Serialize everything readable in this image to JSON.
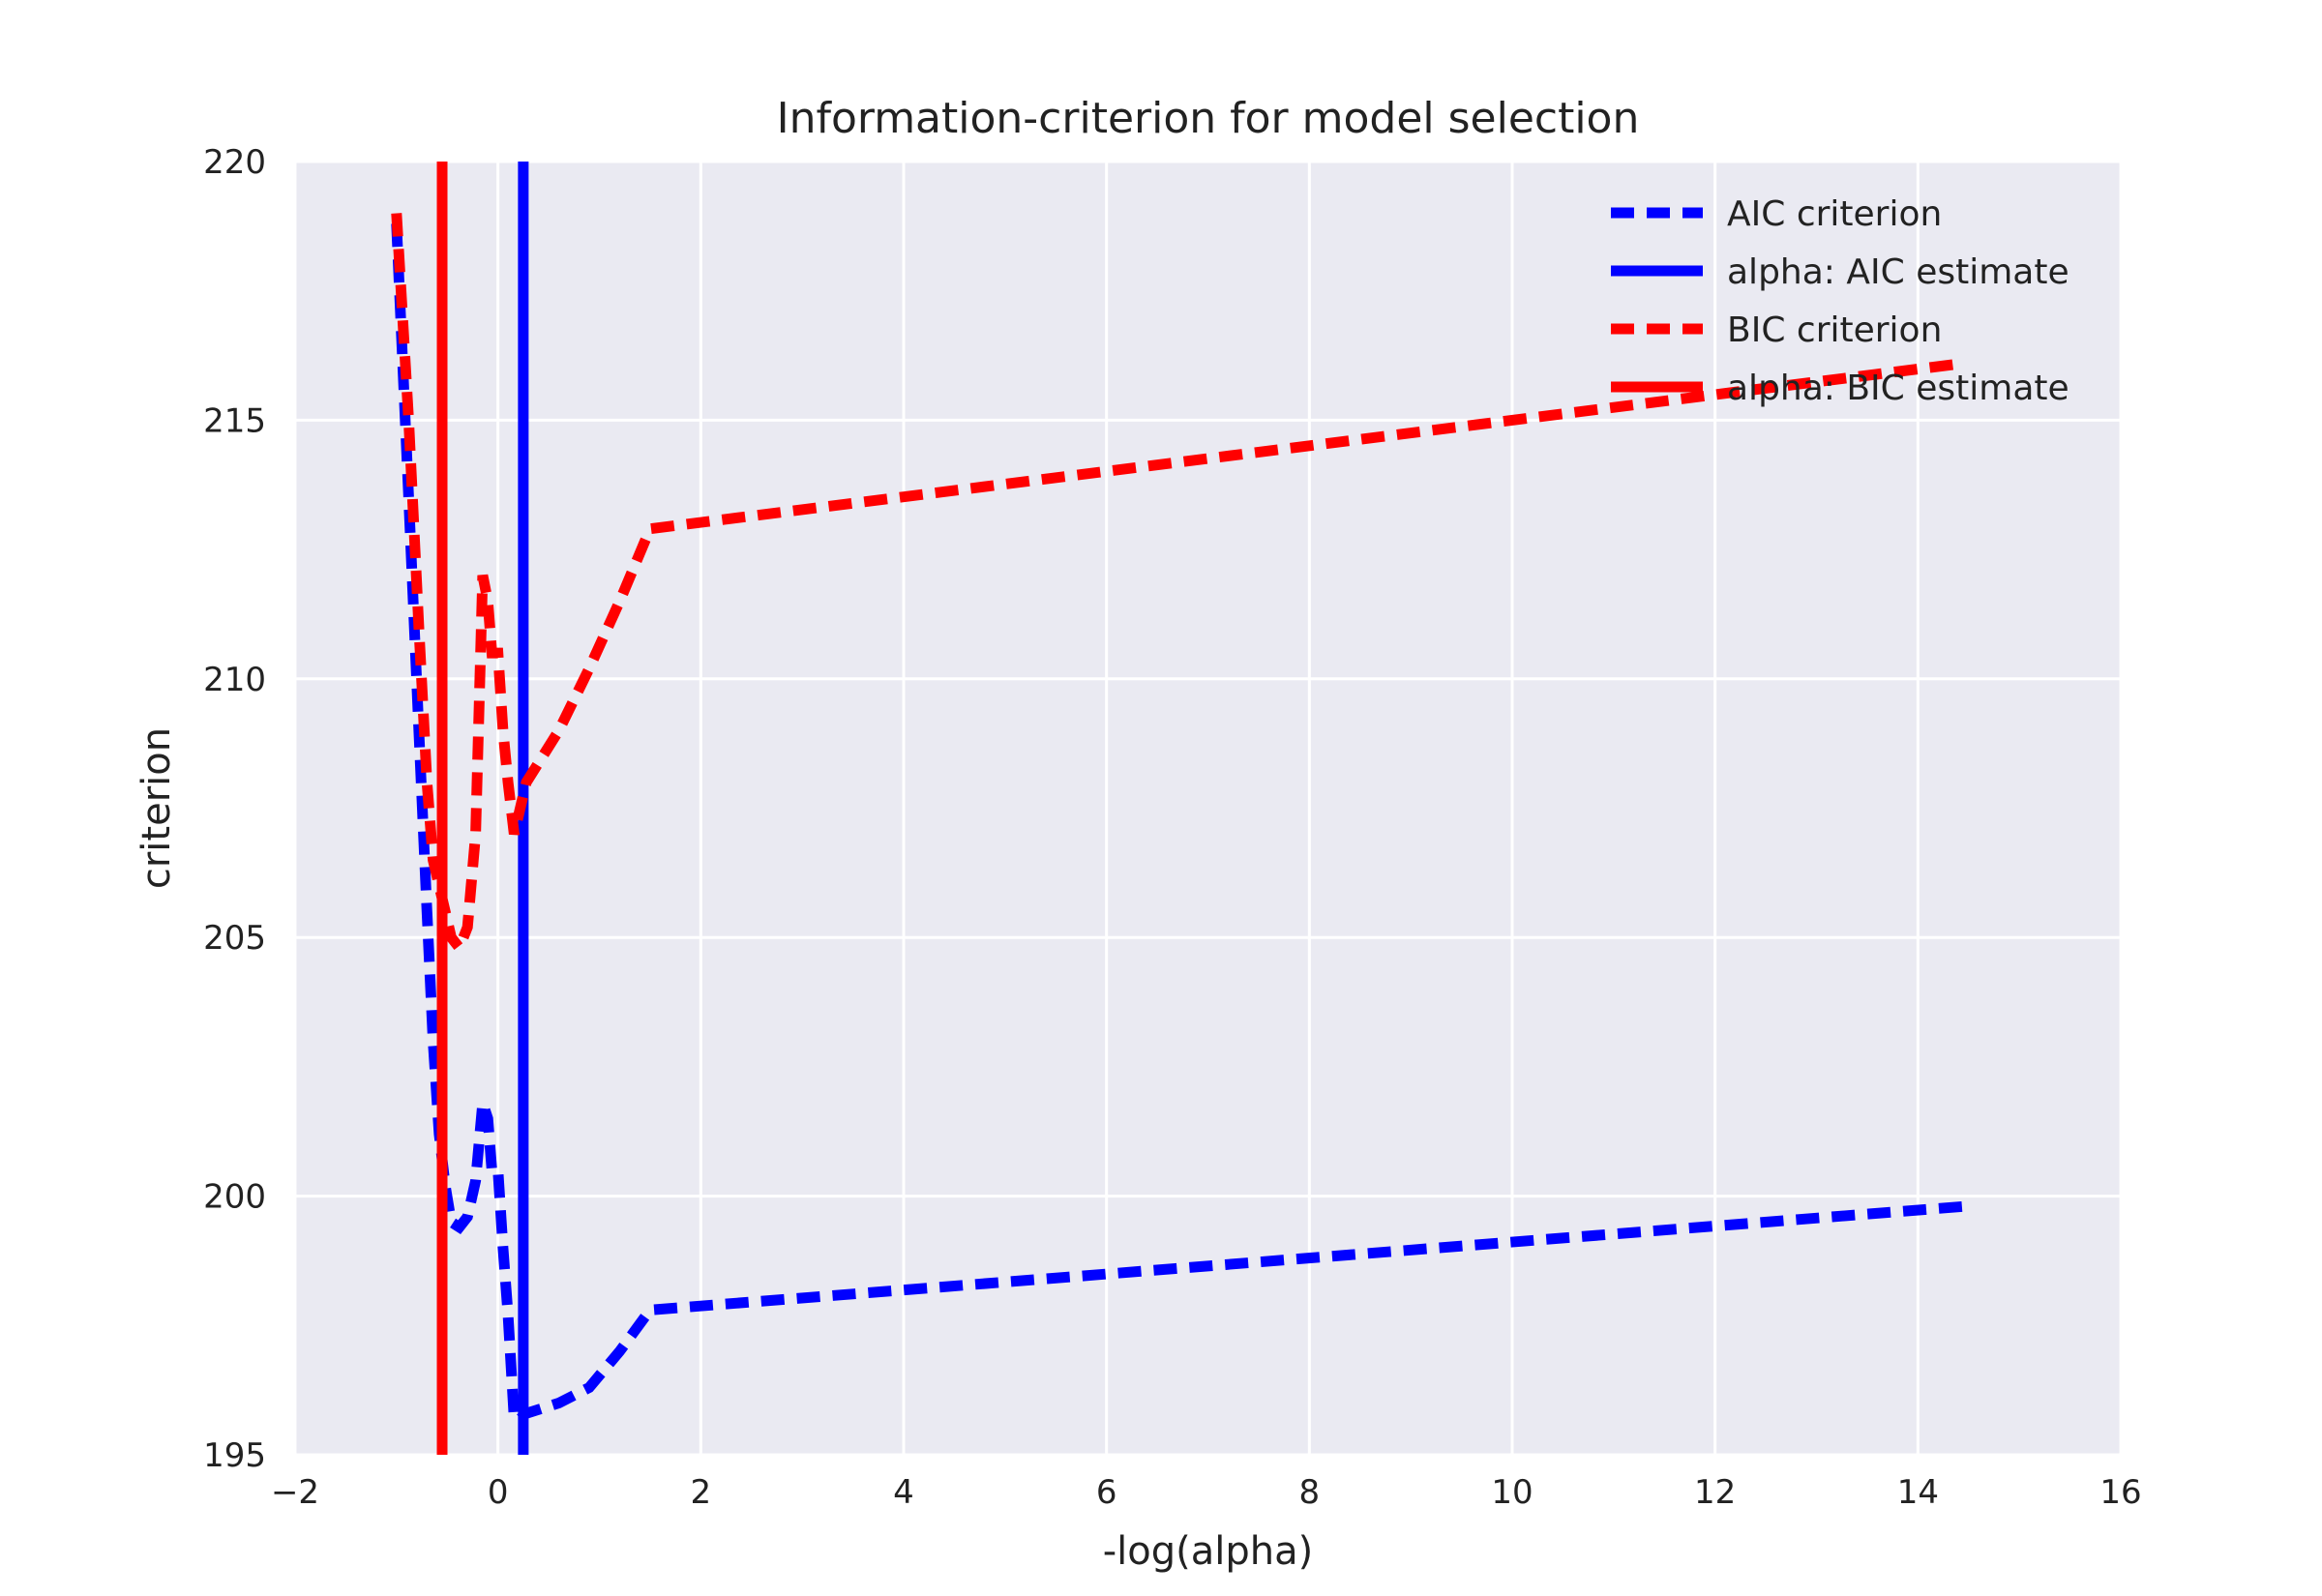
{
  "chart_data": {
    "type": "line",
    "title": "Information-criterion for model selection",
    "xlabel": "-log(alpha)",
    "ylabel": "criterion",
    "xlim": [
      -2,
      16
    ],
    "ylim": [
      195,
      220
    ],
    "xticks": [
      -2,
      0,
      2,
      4,
      6,
      8,
      10,
      12,
      14,
      16
    ],
    "yticks": [
      195,
      200,
      205,
      210,
      215,
      220
    ],
    "xtick_labels": [
      "−2",
      "0",
      "2",
      "4",
      "6",
      "8",
      "10",
      "12",
      "14",
      "16"
    ],
    "ytick_labels": [
      "195",
      "200",
      "205",
      "210",
      "215",
      "220"
    ],
    "grid": true,
    "background_color": "#EAEAF2",
    "legend_position": "top-right",
    "series": [
      {
        "name": "AIC criterion",
        "style": "dashed",
        "color": "#0000FF",
        "x": [
          -1.0,
          -0.88,
          -0.78,
          -0.7,
          -0.64,
          -0.58,
          -0.52,
          -0.46,
          -0.38,
          -0.3,
          -0.22,
          -0.15,
          -0.1,
          -0.06,
          0.0,
          0.05,
          0.1,
          0.16,
          0.22,
          0.28,
          0.6,
          0.9,
          1.2,
          1.5,
          14.45
        ],
        "y": [
          218.8,
          213.5,
          209.0,
          205.5,
          203.0,
          201.2,
          200.2,
          199.5,
          199.4,
          199.6,
          200.3,
          201.8,
          201.5,
          200.5,
          200.5,
          199.0,
          197.7,
          195.7,
          195.7,
          195.8,
          196.0,
          196.3,
          197.0,
          197.8,
          199.8
        ]
      },
      {
        "name": "alpha: AIC estimate",
        "style": "solid",
        "color": "#0000FF",
        "x_value": 0.25
      },
      {
        "name": "BIC criterion",
        "style": "dashed",
        "color": "#FF0000",
        "x": [
          -1.0,
          -0.88,
          -0.78,
          -0.7,
          -0.64,
          -0.58,
          -0.52,
          -0.46,
          -0.38,
          -0.3,
          -0.22,
          -0.15,
          -0.1,
          -0.06,
          0.0,
          0.05,
          0.1,
          0.16,
          0.22,
          0.28,
          0.6,
          0.9,
          1.2,
          1.5,
          14.45
        ],
        "y": [
          219.0,
          215.0,
          211.0,
          208.0,
          206.5,
          206.0,
          205.5,
          205.0,
          204.8,
          205.2,
          207.0,
          212.0,
          211.5,
          210.5,
          210.5,
          209.0,
          208.0,
          207.0,
          207.5,
          208.0,
          209.0,
          210.2,
          211.5,
          212.9,
          216.1
        ]
      },
      {
        "name": "alpha: BIC estimate",
        "style": "solid",
        "color": "#FF0000",
        "x_value": -0.55
      }
    ]
  }
}
